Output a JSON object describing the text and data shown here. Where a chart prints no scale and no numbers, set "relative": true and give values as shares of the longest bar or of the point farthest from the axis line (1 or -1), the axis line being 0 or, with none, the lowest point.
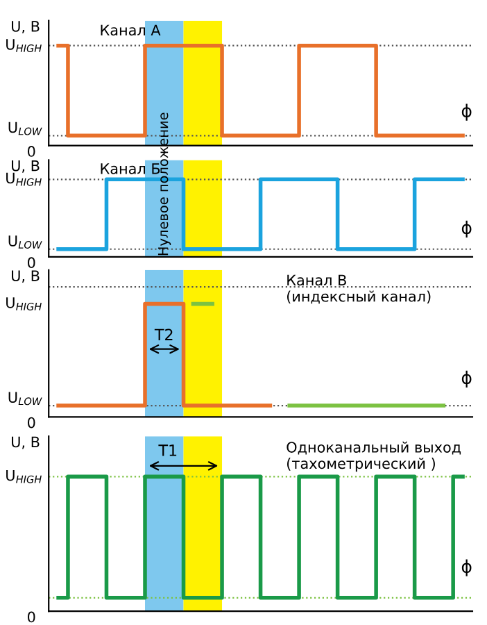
{
  "chart_data": [
    {
      "type": "step",
      "title": "Канал А",
      "ylabel": "U, B",
      "xlabel": "ϕ",
      "line_style": "solid",
      "relative": true,
      "categories": [
        null,
        null,
        null,
        null,
        null,
        null,
        null,
        null,
        null,
        null,
        null,
        null,
        null,
        null,
        null,
        null,
        null,
        null,
        null,
        null,
        null,
        null
      ],
      "series": [
        {
          "color": "#e8702a",
          "values": [
            1,
            0.1,
            0.1,
            0.1,
            0.1,
            1,
            1,
            1,
            1,
            0.1,
            0.1,
            0.1,
            0.1,
            1,
            1,
            1,
            1,
            0.1,
            0.1,
            0.1,
            0.1,
            0.1
          ]
        }
      ],
      "ref_lines": [
        {
          "axis": "y",
          "value": 1,
          "color": "#555555",
          "line_style": "dotted"
        },
        {
          "axis": "y",
          "value": 0.1,
          "color": "#555555",
          "line_style": "dotted"
        }
      ],
      "annotations": [
        "U$_{HIGH}$",
        "U$_{LOW}$",
        "0"
      ]
    },
    {
      "type": "step",
      "title": "Канал Б",
      "ylabel": "U, B",
      "xlabel": "ϕ",
      "line_style": "solid",
      "relative": true,
      "categories": [
        null,
        null,
        null,
        null,
        null,
        null,
        null,
        null,
        null,
        null,
        null,
        null,
        null,
        null,
        null,
        null,
        null,
        null,
        null,
        null,
        null,
        null
      ],
      "series": [
        {
          "color": "#1ba3de",
          "values": [
            0.1,
            0.1,
            0.1,
            1,
            1,
            1,
            1,
            0.1,
            0.1,
            0.1,
            0.1,
            1,
            1,
            1,
            1,
            0.1,
            0.1,
            0.1,
            0.1,
            1,
            1,
            1
          ]
        }
      ],
      "ref_lines": [
        {
          "axis": "y",
          "value": 1,
          "color": "#555555",
          "line_style": "dotted"
        },
        {
          "axis": "y",
          "value": 0.1,
          "color": "#555555",
          "line_style": "dotted"
        }
      ],
      "annotations": [
        "U$_{HIGH}$",
        "U$_{LOW}$",
        "0",
        "Нулевое положение"
      ]
    },
    {
      "type": "step",
      "title": "Канал В\n(индексный канал)",
      "ylabel": "U, B",
      "xlabel": "ϕ",
      "line_style": "solid",
      "relative": true,
      "categories": [
        null,
        null,
        null,
        null,
        null,
        null,
        null,
        null,
        null,
        null,
        null,
        null,
        null,
        null,
        null,
        null,
        null,
        null,
        null,
        null,
        null,
        null
      ],
      "series": [
        {
          "color": "#e8702a",
          "values": [
            0.1,
            0.1,
            0.1,
            0.1,
            0.1,
            1,
            1,
            0.1,
            0.1,
            0.1,
            0.1,
            0.1,
            null,
            null,
            null,
            null,
            null,
            null,
            null,
            null,
            null,
            null
          ]
        },
        {
          "color": "#7cc242",
          "values": [
            null,
            null,
            null,
            null,
            null,
            null,
            null,
            null,
            null,
            null,
            null,
            null,
            0.1,
            0.1,
            0.1,
            0.1,
            0.1,
            0.1,
            0.1,
            0.1,
            0.1,
            null
          ]
        },
        {
          "color": "#7cc242",
          "values": [
            null,
            null,
            null,
            null,
            null,
            null,
            null,
            1,
            1,
            null,
            null,
            null,
            null,
            null,
            null,
            null,
            null,
            null,
            null,
            null,
            null,
            null
          ]
        }
      ],
      "ref_lines": [
        {
          "axis": "y",
          "value": 1.15,
          "color": "#555555",
          "line_style": "dotted"
        },
        {
          "axis": "y",
          "value": 0.1,
          "color": "#555555",
          "line_style": "dotted"
        }
      ],
      "annotations": [
        "U$_{HIGH}$",
        "U$_{LOW}$",
        "0",
        "T2"
      ]
    },
    {
      "type": "step",
      "title": "Одноканальный выход\n(тахометрический )",
      "ylabel": "U, B",
      "xlabel": "ϕ",
      "line_style": "solid",
      "relative": true,
      "categories": [
        null,
        null,
        null,
        null,
        null,
        null,
        null,
        null,
        null,
        null,
        null,
        null,
        null,
        null,
        null,
        null,
        null,
        null,
        null,
        null,
        null,
        null
      ],
      "series": [
        {
          "color": "#1a9a48",
          "values": [
            0.1,
            1,
            1,
            0.1,
            0.1,
            1,
            1,
            0.1,
            0.1,
            1,
            1,
            0.1,
            0.1,
            1,
            1,
            0.1,
            0.1,
            1,
            1,
            0.1,
            0.1,
            1
          ]
        }
      ],
      "ref_lines": [
        {
          "axis": "y",
          "value": 1,
          "color": "#7cc242",
          "line_style": "dotted"
        },
        {
          "axis": "y",
          "value": 0.1,
          "color": "#7cc242",
          "line_style": "dotted"
        }
      ],
      "annotations": [
        "U$_{HIGH}$",
        "0",
        "T1"
      ]
    }
  ]
}
